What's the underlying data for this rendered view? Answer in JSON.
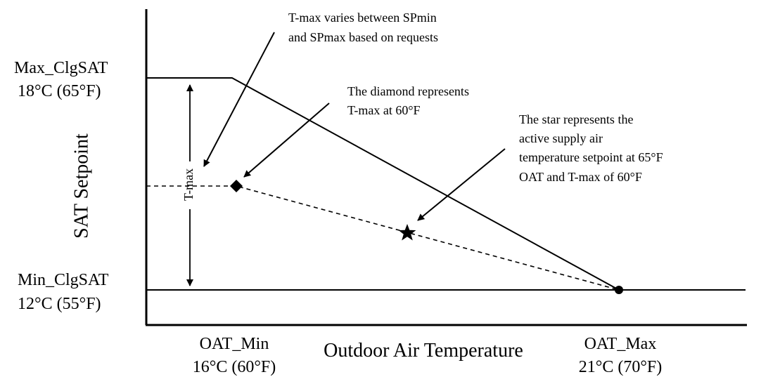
{
  "y_axis": {
    "title": "SAT Setpoint",
    "max_label": "Max_ClgSAT",
    "max_value": "18°C (65°F)",
    "min_label": "Min_ClgSAT",
    "min_value": "12°C (55°F)"
  },
  "x_axis": {
    "title": "Outdoor Air Temperature",
    "min_label": "OAT_Min",
    "min_value": "16°C (60°F)",
    "max_label": "OAT_Max",
    "max_value": "21°C (70°F)"
  },
  "tmax_label": "T-max",
  "annotations": {
    "tmax_varies": [
      "T-max varies between SPmin",
      "and SPmax based on requests"
    ],
    "diamond": [
      "The diamond represents",
      "T-max at 60°F"
    ],
    "star": [
      "The star represents the",
      "active supply air",
      "temperature setpoint at 65°F",
      "OAT and T-max of 60°F"
    ]
  },
  "colors": {
    "ink": "#000000",
    "background": "#ffffff"
  }
}
